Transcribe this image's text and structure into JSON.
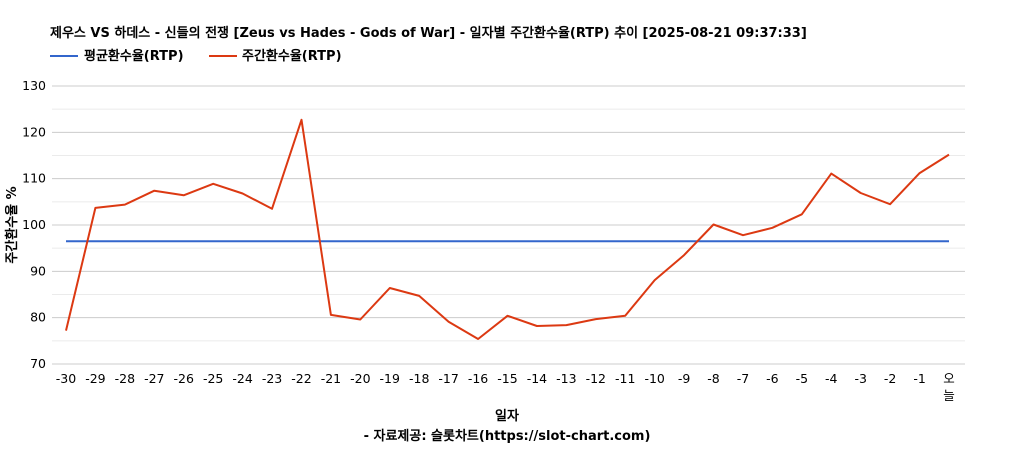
{
  "chart_data": {
    "type": "line",
    "title": "제우스 VS 하데스 - 신들의 전쟁 [Zeus vs Hades - Gods of War] - 일자별 주간환수율(RTP) 추이 [2025-08-21 09:37:33]",
    "xlabel": "일자",
    "ylabel": "주간환수율 %",
    "source": "- 자료제공: 슬롯차트(https://slot-chart.com)",
    "ylim": [
      70,
      130
    ],
    "yticks": [
      "130",
      "120",
      "110",
      "100",
      "90",
      "80",
      "70"
    ],
    "grid": true,
    "legend_position": "top-left",
    "categories": [
      "-30",
      "-29",
      "-28",
      "-27",
      "-26",
      "-25",
      "-24",
      "-23",
      "-22",
      "-21",
      "-20",
      "-19",
      "-18",
      "-17",
      "-16",
      "-15",
      "-14",
      "-13",
      "-12",
      "-11",
      "-10",
      "-9",
      "-8",
      "-7",
      "-6",
      "-5",
      "-4",
      "-3",
      "-2",
      "-1",
      "오늘"
    ],
    "series": [
      {
        "name": "평균환수율(RTP)",
        "color": "#3366cc",
        "values": [
          96.5,
          96.5,
          96.5,
          96.5,
          96.5,
          96.5,
          96.5,
          96.5,
          96.5,
          96.5,
          96.5,
          96.5,
          96.5,
          96.5,
          96.5,
          96.5,
          96.5,
          96.5,
          96.5,
          96.5,
          96.5,
          96.5,
          96.5,
          96.5,
          96.5,
          96.5,
          96.5,
          96.5,
          96.5,
          96.5,
          96.5
        ]
      },
      {
        "name": "주간환수율(RTP)",
        "color": "#dc3912",
        "values": [
          77.2,
          103.7,
          104.4,
          107.4,
          106.4,
          108.9,
          106.8,
          103.5,
          122.7,
          80.6,
          79.6,
          86.4,
          84.7,
          79.1,
          75.4,
          80.4,
          78.2,
          78.4,
          79.7,
          80.4,
          88.1,
          93.5,
          100.1,
          97.8,
          99.4,
          102.3,
          111.1,
          106.9,
          104.5,
          111.2,
          115.2
        ]
      }
    ]
  }
}
